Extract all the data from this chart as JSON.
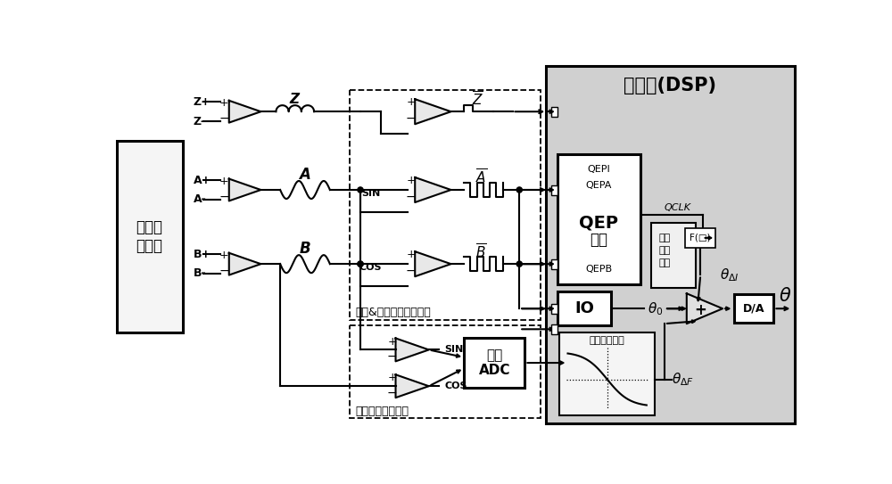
{
  "figsize": [
    10.0,
    5.43
  ],
  "dpi": 100,
  "bg": "#ffffff",
  "encoder_label": "增量式\n编码器",
  "dsp_label": "单片机(DSP)",
  "qep_bold": "QEP",
  "qep_unit": "单元",
  "qepi": "QEPI",
  "qepa": "QEPA",
  "qepb": "QEPB",
  "io_label": "IO",
  "adc_label": "高速\nADC",
  "sine_box_label": "弦波&零位信号整形电路",
  "subdiv_box_label": "弦波信号细分电路",
  "subdiv_calc_label": "分量角度计算",
  "int_calc_label1": "整量",
  "int_calc_label2": "角度",
  "int_calc_label3": "计算",
  "func_label": "F(□)",
  "qclk_label": "QCLK",
  "lw": 1.5,
  "lw_thick": 2.2,
  "amp_fill": "#e8e8e8",
  "dsp_fill": "#d0d0d0",
  "box_fill": "#f0f0f0"
}
